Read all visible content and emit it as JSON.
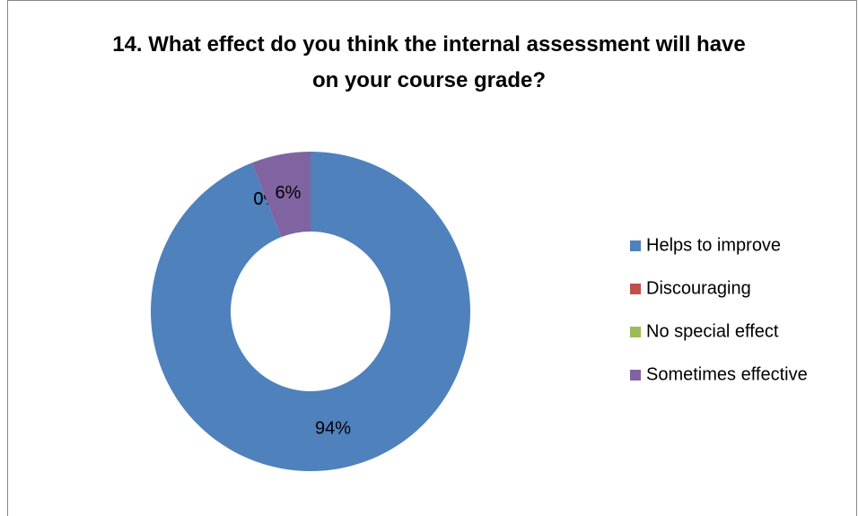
{
  "chart_data": {
    "type": "donut",
    "title": "14. What effect do you think the internal assessment will have on your course grade?",
    "categories": [
      "Helps to improve",
      "Discouraging",
      "No special effect",
      "Sometimes effective"
    ],
    "values": [
      94,
      0,
      0,
      6
    ],
    "value_labels": [
      "94%",
      "0%",
      "0%",
      "6%"
    ],
    "colors": [
      "#4f81bd",
      "#c0504d",
      "#9bbb59",
      "#8064a2"
    ],
    "legend": "right"
  }
}
